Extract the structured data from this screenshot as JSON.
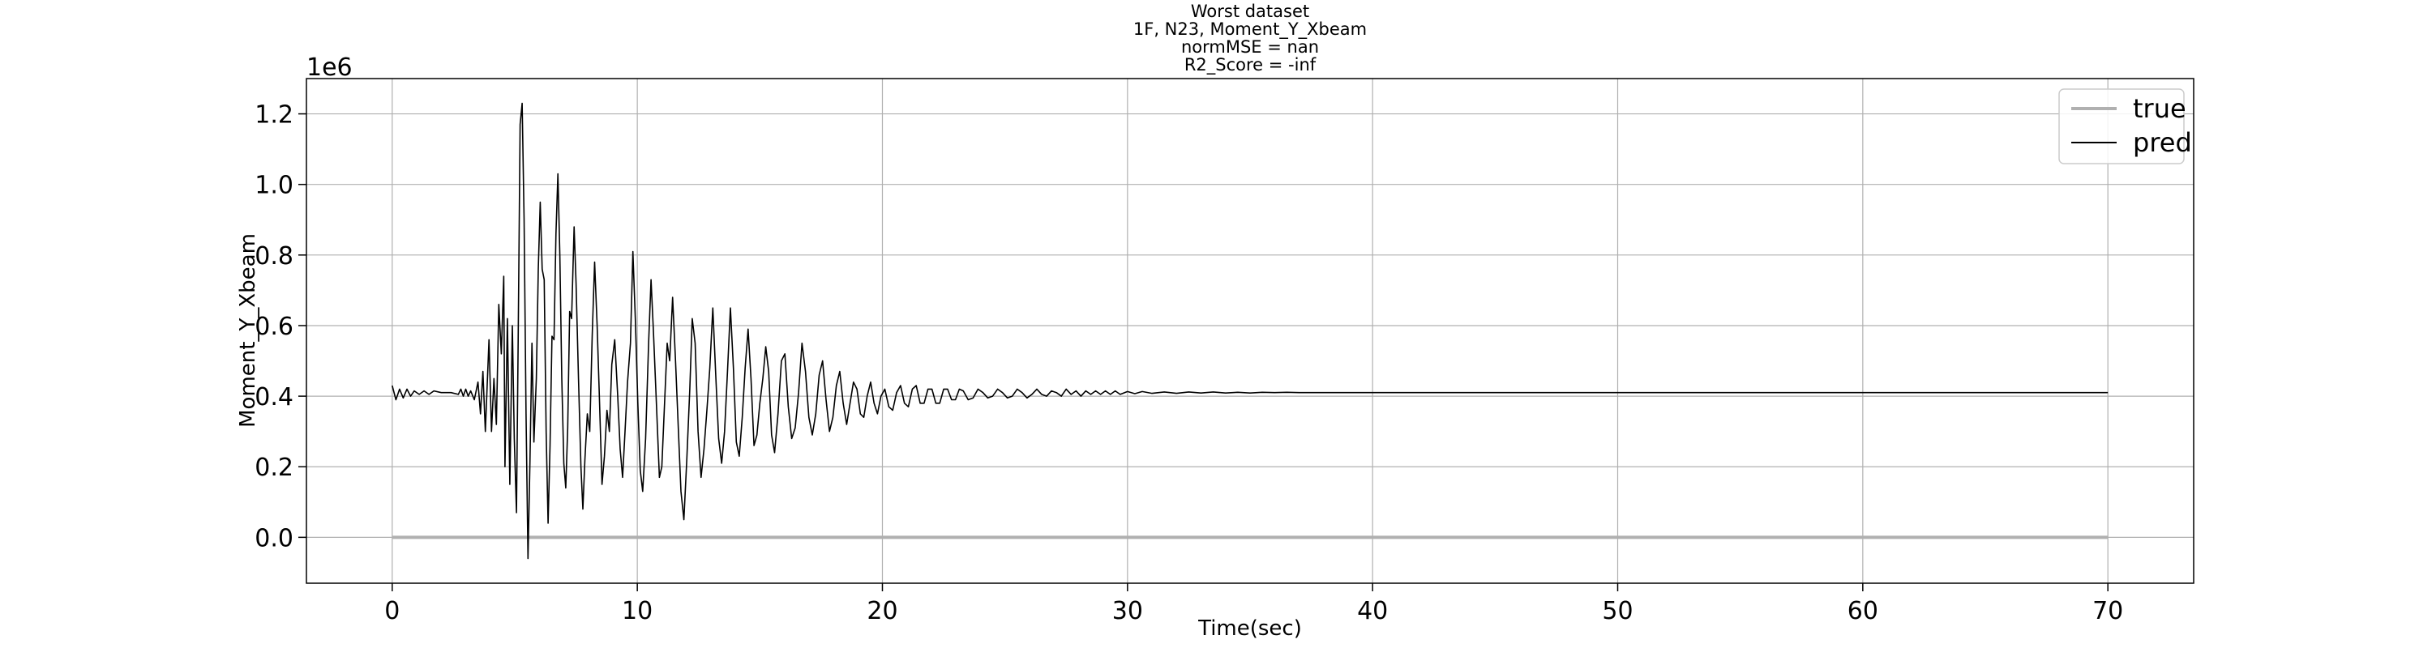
{
  "chart_data": {
    "type": "line",
    "title_lines": [
      "Worst dataset",
      "1F, N23, Moment_Y_Xbeam",
      "normMSE = nan",
      "R2_Score = -inf"
    ],
    "xlabel": "Time(sec)",
    "ylabel": "Moment_Y_Xbeam",
    "y_offset_text": "1e6",
    "xlim": [
      -3.5,
      73.5
    ],
    "ylim": [
      -0.13,
      1.3
    ],
    "x_ticks": [
      0,
      10,
      20,
      30,
      40,
      50,
      60,
      70
    ],
    "x_tick_labels": [
      "0",
      "10",
      "20",
      "30",
      "40",
      "50",
      "60",
      "70"
    ],
    "y_ticks": [
      0.0,
      0.2,
      0.4,
      0.6,
      0.8,
      1.0,
      1.2
    ],
    "y_tick_labels": [
      "0.0",
      "0.2",
      "0.4",
      "0.6",
      "0.8",
      "1.0",
      "1.2"
    ],
    "grid": true,
    "legend_position": "top-right",
    "series": [
      {
        "name": "true",
        "color": "#b0b0b0",
        "points": [
          [
            0,
            0
          ],
          [
            70,
            0
          ]
        ]
      },
      {
        "name": "pred",
        "color": "#000000",
        "points": [
          [
            0,
            0.43
          ],
          [
            0.15,
            0.39
          ],
          [
            0.3,
            0.42
          ],
          [
            0.45,
            0.395
          ],
          [
            0.6,
            0.42
          ],
          [
            0.75,
            0.4
          ],
          [
            0.9,
            0.415
          ],
          [
            1.1,
            0.405
          ],
          [
            1.3,
            0.415
          ],
          [
            1.5,
            0.405
          ],
          [
            1.7,
            0.415
          ],
          [
            2.0,
            0.41
          ],
          [
            2.4,
            0.41
          ],
          [
            2.7,
            0.405
          ],
          [
            2.8,
            0.42
          ],
          [
            2.9,
            0.4
          ],
          [
            3.0,
            0.42
          ],
          [
            3.1,
            0.4
          ],
          [
            3.2,
            0.415
          ],
          [
            3.35,
            0.39
          ],
          [
            3.5,
            0.44
          ],
          [
            3.6,
            0.35
          ],
          [
            3.7,
            0.47
          ],
          [
            3.8,
            0.3
          ],
          [
            3.95,
            0.56
          ],
          [
            4.05,
            0.3
          ],
          [
            4.15,
            0.45
          ],
          [
            4.25,
            0.32
          ],
          [
            4.35,
            0.66
          ],
          [
            4.45,
            0.52
          ],
          [
            4.55,
            0.74
          ],
          [
            4.6,
            0.2
          ],
          [
            4.7,
            0.62
          ],
          [
            4.8,
            0.15
          ],
          [
            4.9,
            0.6
          ],
          [
            4.98,
            0.28
          ],
          [
            5.07,
            0.07
          ],
          [
            5.14,
            0.56
          ],
          [
            5.22,
            1.17
          ],
          [
            5.3,
            1.23
          ],
          [
            5.38,
            0.9
          ],
          [
            5.46,
            0.35
          ],
          [
            5.54,
            -0.06
          ],
          [
            5.62,
            0.21
          ],
          [
            5.7,
            0.55
          ],
          [
            5.78,
            0.27
          ],
          [
            5.88,
            0.45
          ],
          [
            5.96,
            0.76
          ],
          [
            6.04,
            0.95
          ],
          [
            6.12,
            0.76
          ],
          [
            6.2,
            0.73
          ],
          [
            6.28,
            0.3
          ],
          [
            6.36,
            0.04
          ],
          [
            6.44,
            0.26
          ],
          [
            6.52,
            0.57
          ],
          [
            6.6,
            0.56
          ],
          [
            6.68,
            0.86
          ],
          [
            6.76,
            1.03
          ],
          [
            6.84,
            0.8
          ],
          [
            6.92,
            0.45
          ],
          [
            7.0,
            0.21
          ],
          [
            7.08,
            0.14
          ],
          [
            7.16,
            0.31
          ],
          [
            7.24,
            0.64
          ],
          [
            7.32,
            0.62
          ],
          [
            7.42,
            0.88
          ],
          [
            7.5,
            0.72
          ],
          [
            7.6,
            0.45
          ],
          [
            7.7,
            0.2
          ],
          [
            7.78,
            0.08
          ],
          [
            7.86,
            0.22
          ],
          [
            7.96,
            0.35
          ],
          [
            8.06,
            0.3
          ],
          [
            8.16,
            0.57
          ],
          [
            8.26,
            0.78
          ],
          [
            8.36,
            0.6
          ],
          [
            8.46,
            0.38
          ],
          [
            8.56,
            0.15
          ],
          [
            8.66,
            0.23
          ],
          [
            8.76,
            0.36
          ],
          [
            8.86,
            0.3
          ],
          [
            8.96,
            0.49
          ],
          [
            9.08,
            0.56
          ],
          [
            9.2,
            0.4
          ],
          [
            9.3,
            0.25
          ],
          [
            9.4,
            0.17
          ],
          [
            9.5,
            0.3
          ],
          [
            9.6,
            0.44
          ],
          [
            9.72,
            0.55
          ],
          [
            9.82,
            0.81
          ],
          [
            9.92,
            0.62
          ],
          [
            10.02,
            0.38
          ],
          [
            10.12,
            0.19
          ],
          [
            10.22,
            0.13
          ],
          [
            10.34,
            0.28
          ],
          [
            10.46,
            0.55
          ],
          [
            10.56,
            0.73
          ],
          [
            10.66,
            0.58
          ],
          [
            10.78,
            0.38
          ],
          [
            10.9,
            0.17
          ],
          [
            11.0,
            0.2
          ],
          [
            11.1,
            0.36
          ],
          [
            11.22,
            0.55
          ],
          [
            11.32,
            0.5
          ],
          [
            11.44,
            0.68
          ],
          [
            11.56,
            0.5
          ],
          [
            11.68,
            0.3
          ],
          [
            11.78,
            0.13
          ],
          [
            11.9,
            0.05
          ],
          [
            12.02,
            0.22
          ],
          [
            12.14,
            0.42
          ],
          [
            12.24,
            0.62
          ],
          [
            12.36,
            0.55
          ],
          [
            12.48,
            0.3
          ],
          [
            12.6,
            0.17
          ],
          [
            12.72,
            0.25
          ],
          [
            12.84,
            0.36
          ],
          [
            12.96,
            0.48
          ],
          [
            13.08,
            0.65
          ],
          [
            13.2,
            0.46
          ],
          [
            13.32,
            0.28
          ],
          [
            13.44,
            0.21
          ],
          [
            13.56,
            0.3
          ],
          [
            13.68,
            0.47
          ],
          [
            13.8,
            0.65
          ],
          [
            13.92,
            0.48
          ],
          [
            14.04,
            0.27
          ],
          [
            14.16,
            0.23
          ],
          [
            14.28,
            0.34
          ],
          [
            14.4,
            0.48
          ],
          [
            14.52,
            0.59
          ],
          [
            14.64,
            0.45
          ],
          [
            14.76,
            0.26
          ],
          [
            14.88,
            0.29
          ],
          [
            15.0,
            0.38
          ],
          [
            15.12,
            0.45
          ],
          [
            15.24,
            0.54
          ],
          [
            15.36,
            0.47
          ],
          [
            15.48,
            0.29
          ],
          [
            15.6,
            0.24
          ],
          [
            15.74,
            0.35
          ],
          [
            15.88,
            0.5
          ],
          [
            16.02,
            0.52
          ],
          [
            16.16,
            0.37
          ],
          [
            16.3,
            0.28
          ],
          [
            16.44,
            0.31
          ],
          [
            16.58,
            0.41
          ],
          [
            16.72,
            0.55
          ],
          [
            16.86,
            0.47
          ],
          [
            17.0,
            0.34
          ],
          [
            17.14,
            0.29
          ],
          [
            17.28,
            0.35
          ],
          [
            17.42,
            0.46
          ],
          [
            17.56,
            0.5
          ],
          [
            17.7,
            0.39
          ],
          [
            17.84,
            0.3
          ],
          [
            17.98,
            0.34
          ],
          [
            18.12,
            0.43
          ],
          [
            18.26,
            0.47
          ],
          [
            18.4,
            0.38
          ],
          [
            18.54,
            0.32
          ],
          [
            18.68,
            0.38
          ],
          [
            18.82,
            0.44
          ],
          [
            18.96,
            0.42
          ],
          [
            19.1,
            0.35
          ],
          [
            19.24,
            0.34
          ],
          [
            19.38,
            0.4
          ],
          [
            19.52,
            0.44
          ],
          [
            19.66,
            0.38
          ],
          [
            19.8,
            0.35
          ],
          [
            19.94,
            0.4
          ],
          [
            20.1,
            0.42
          ],
          [
            20.26,
            0.37
          ],
          [
            20.42,
            0.36
          ],
          [
            20.58,
            0.41
          ],
          [
            20.74,
            0.43
          ],
          [
            20.9,
            0.38
          ],
          [
            21.06,
            0.37
          ],
          [
            21.22,
            0.42
          ],
          [
            21.38,
            0.43
          ],
          [
            21.54,
            0.38
          ],
          [
            21.7,
            0.38
          ],
          [
            21.86,
            0.42
          ],
          [
            22.02,
            0.42
          ],
          [
            22.18,
            0.38
          ],
          [
            22.34,
            0.38
          ],
          [
            22.5,
            0.42
          ],
          [
            22.66,
            0.42
          ],
          [
            22.82,
            0.39
          ],
          [
            22.98,
            0.39
          ],
          [
            23.14,
            0.42
          ],
          [
            23.3,
            0.415
          ],
          [
            23.5,
            0.39
          ],
          [
            23.7,
            0.395
          ],
          [
            23.9,
            0.42
          ],
          [
            24.1,
            0.41
          ],
          [
            24.3,
            0.395
          ],
          [
            24.5,
            0.4
          ],
          [
            24.7,
            0.42
          ],
          [
            24.9,
            0.41
          ],
          [
            25.1,
            0.395
          ],
          [
            25.3,
            0.4
          ],
          [
            25.5,
            0.42
          ],
          [
            25.7,
            0.41
          ],
          [
            25.9,
            0.395
          ],
          [
            26.1,
            0.405
          ],
          [
            26.3,
            0.42
          ],
          [
            26.5,
            0.405
          ],
          [
            26.7,
            0.4
          ],
          [
            26.9,
            0.415
          ],
          [
            27.1,
            0.41
          ],
          [
            27.3,
            0.4
          ],
          [
            27.5,
            0.42
          ],
          [
            27.7,
            0.405
          ],
          [
            27.9,
            0.415
          ],
          [
            28.1,
            0.4
          ],
          [
            28.3,
            0.415
          ],
          [
            28.5,
            0.405
          ],
          [
            28.7,
            0.415
          ],
          [
            28.9,
            0.405
          ],
          [
            29.1,
            0.415
          ],
          [
            29.3,
            0.405
          ],
          [
            29.5,
            0.415
          ],
          [
            29.7,
            0.405
          ],
          [
            30.0,
            0.413
          ],
          [
            30.3,
            0.407
          ],
          [
            30.6,
            0.413
          ],
          [
            31.0,
            0.408
          ],
          [
            31.5,
            0.412
          ],
          [
            32.0,
            0.408
          ],
          [
            32.5,
            0.412
          ],
          [
            33.0,
            0.409
          ],
          [
            33.5,
            0.412
          ],
          [
            34.0,
            0.409
          ],
          [
            34.5,
            0.411
          ],
          [
            35.0,
            0.409
          ],
          [
            35.5,
            0.411
          ],
          [
            36.0,
            0.41
          ],
          [
            36.5,
            0.411
          ],
          [
            37.0,
            0.41
          ],
          [
            38.0,
            0.41
          ],
          [
            40.0,
            0.41
          ],
          [
            45.0,
            0.41
          ],
          [
            50.0,
            0.41
          ],
          [
            55.0,
            0.41
          ],
          [
            60.0,
            0.41
          ],
          [
            65.0,
            0.41
          ],
          [
            70.0,
            0.41
          ]
        ]
      }
    ]
  }
}
